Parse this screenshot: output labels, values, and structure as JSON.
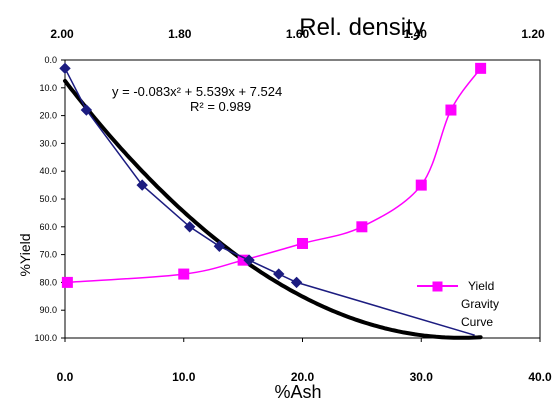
{
  "chart_data": {
    "type": "scatter",
    "title": "Rel. density",
    "xlabel": "%Ash",
    "ylabel": "%Yield",
    "xlim": [
      0,
      40
    ],
    "ylim": [
      0,
      100
    ],
    "y_inverted": true,
    "x_ticks": [
      "0.0",
      "10.0",
      "20.0",
      "30.0",
      "40.0"
    ],
    "y_ticks": [
      "0.0",
      "10.0",
      "20.0",
      "30.0",
      "40.0",
      "50.0",
      "60.0",
      "70.0",
      "80.0",
      "90.0",
      "100.0"
    ],
    "top_axis": {
      "title": "Rel. density",
      "ticks": [
        "2.00",
        "1.80",
        "1.60",
        "1.40",
        "1.20"
      ]
    },
    "grid": false,
    "legend_position": "bottom-right",
    "legend": {
      "label": "Yield Gravity Curve",
      "line1": "Yield",
      "line2": "Gravity",
      "line3": "Curve"
    },
    "series": [
      {
        "name": "Yield Gravity Curve",
        "color": "#ff00ff",
        "marker": "square",
        "x": [
          0.2,
          10,
          15,
          20,
          25,
          30,
          32.5,
          35
        ],
        "y": [
          80,
          77,
          72,
          66,
          60,
          45,
          18,
          3
        ]
      },
      {
        "color": "#1c1c80",
        "marker": "diamond",
        "x": [
          0,
          1.8,
          6.5,
          10.5,
          13,
          15.5,
          18,
          19.5,
          34.5
        ],
        "y": [
          3,
          18,
          45,
          60,
          67,
          72,
          77,
          80,
          99
        ]
      },
      {
        "color": "#000000",
        "marker": "none",
        "type": "trendline",
        "equation_coefficients": [
          -0.083,
          5.539,
          7.524
        ]
      }
    ],
    "annotations": {
      "equation": "y = -0.083x² + 5.539x + 7.524",
      "r_squared": "R² = 0.989"
    }
  }
}
